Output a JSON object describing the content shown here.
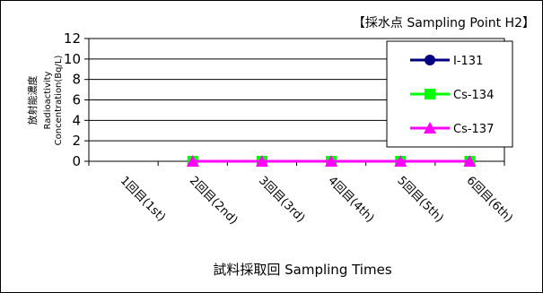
{
  "chart_data": {
    "type": "line",
    "title": "【採水点 Sampling Point  H2】",
    "xlabel": "試料採取回 Sampling Times",
    "ylabel_jp": "放射能濃度",
    "ylabel_en_1": "Radioactivity",
    "ylabel_en_2": "Concentration(Bq/L)",
    "categories": [
      "1回目(1st)",
      "2回目(2nd)",
      "3回目(3rd)",
      "4回目(4th)",
      "5回目(5th)",
      "6回目(6th)"
    ],
    "ylim": [
      0,
      12
    ],
    "yticks": [
      0,
      2,
      4,
      6,
      8,
      10,
      12
    ],
    "grid": true,
    "legend_position": "right",
    "series": [
      {
        "name": "I-131",
        "color": "#000080",
        "marker": "circle",
        "values": [
          null,
          0,
          0,
          0,
          0,
          0
        ]
      },
      {
        "name": "Cs-134",
        "color": "#00ff00",
        "marker": "square",
        "values": [
          null,
          0,
          0,
          0,
          0,
          0
        ]
      },
      {
        "name": "Cs-137",
        "color": "#ff00ff",
        "marker": "triangle",
        "values": [
          null,
          0,
          0,
          0,
          0,
          0
        ]
      }
    ]
  }
}
